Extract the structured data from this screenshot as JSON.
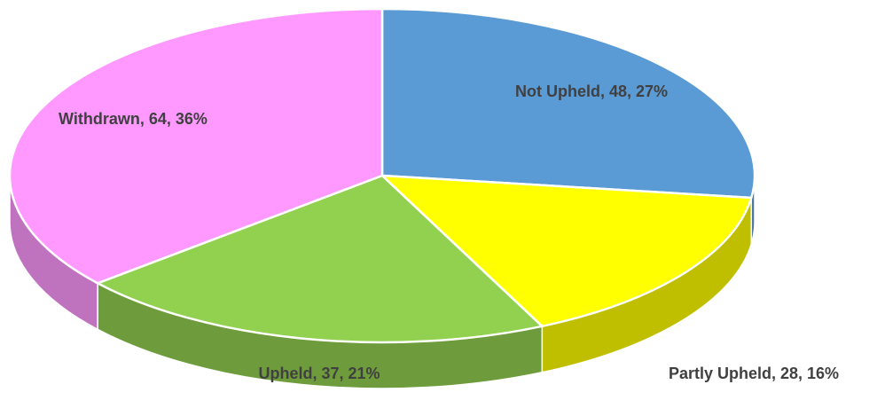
{
  "chart_data": {
    "type": "pie",
    "values": [
      48,
      28,
      37,
      64
    ],
    "value_labels": [
      "Not Upheld, 48, 27%",
      "Partly Upheld, 28, 16%",
      "Upheld, 37, 21%",
      "Withdrawn, 64, 36%"
    ],
    "colors": [
      "#5b9bd5",
      "#ffff00",
      "#92d050",
      "#ff99ff"
    ]
  }
}
